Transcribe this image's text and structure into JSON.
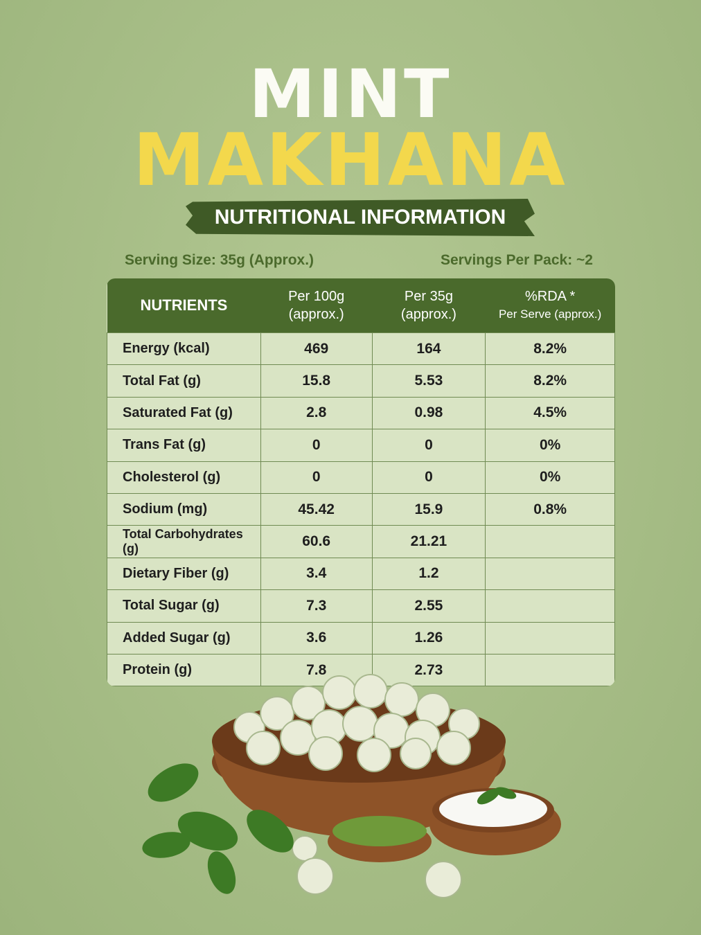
{
  "header": {
    "title_line1": "MINT",
    "title_line2": "MAKHANA",
    "subtitle": "NUTRITIONAL INFORMATION"
  },
  "serving": {
    "size": "Serving Size: 35g (Approx.)",
    "per_pack": "Servings Per Pack: ~2"
  },
  "table": {
    "columns": [
      [
        "NUTRIENTS"
      ],
      [
        "Per 100g",
        "(approx.)"
      ],
      [
        "Per 35g",
        "(approx.)"
      ],
      [
        "%RDA *",
        "Per Serve (approx.)"
      ]
    ],
    "rows": [
      [
        "Energy (kcal)",
        "469",
        "164",
        "8.2%"
      ],
      [
        "Total Fat (g)",
        "15.8",
        "5.53",
        "8.2%"
      ],
      [
        "Saturated Fat (g)",
        "2.8",
        "0.98",
        "4.5%"
      ],
      [
        "Trans Fat (g)",
        "0",
        "0",
        "0%"
      ],
      [
        "Cholesterol (g)",
        "0",
        "0",
        "0%"
      ],
      [
        "Sodium (mg)",
        "45.42",
        "15.9",
        "0.8%"
      ],
      [
        "Total Carbohydrates (g)",
        "60.6",
        "21.21"
      ],
      [
        "Dietary Fiber (g)",
        "3.4",
        "1.2"
      ],
      [
        "Total Sugar (g)",
        "7.3",
        "2.55"
      ],
      [
        "Added Sugar (g)",
        "3.6",
        "1.26"
      ],
      [
        "Protein (g)",
        "7.8",
        "2.73"
      ]
    ]
  }
}
